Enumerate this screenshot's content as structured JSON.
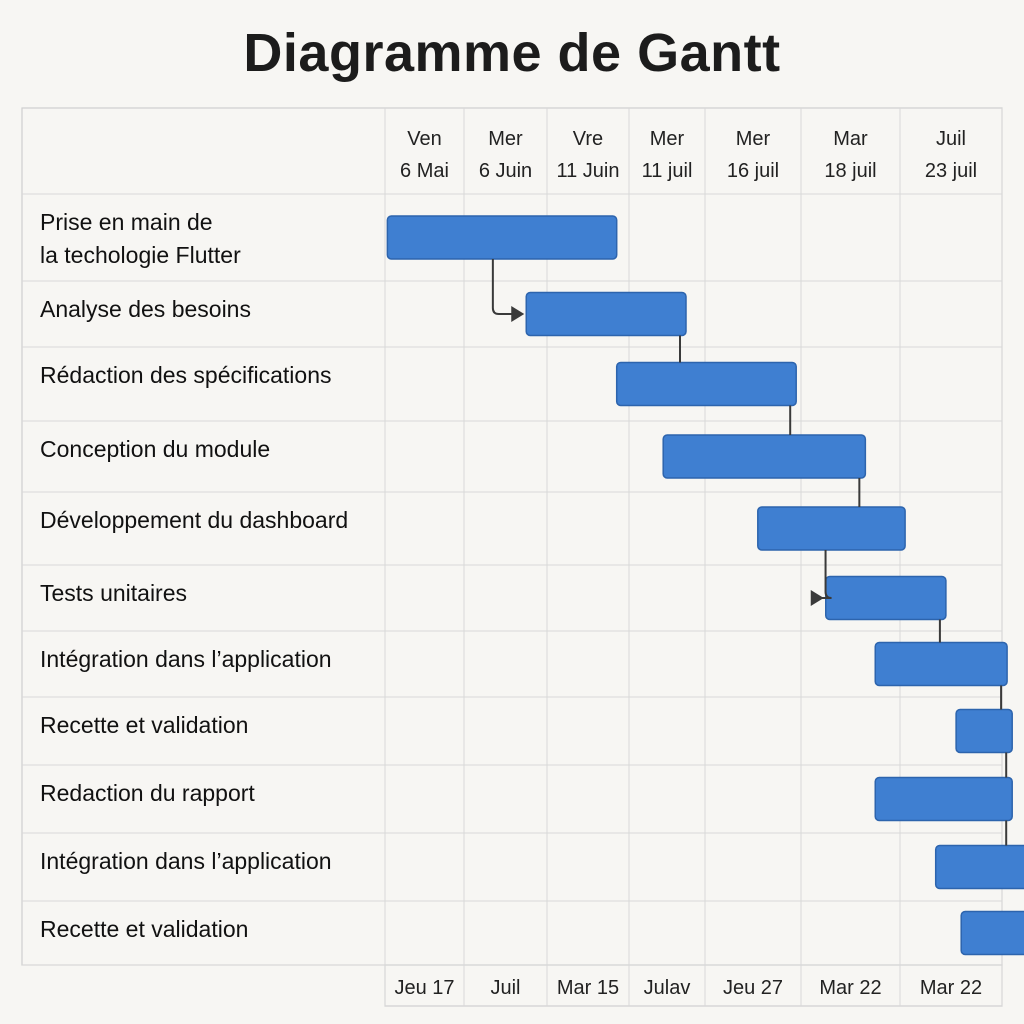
{
  "title": "Diagramme de Gantt",
  "chart_data": {
    "type": "gantt",
    "title": "Diagramme de Gantt",
    "columns_top": [
      {
        "line1": "Ven",
        "line2": "6 Mai"
      },
      {
        "line1": "Mer",
        "line2": "6 Juin"
      },
      {
        "line1": "Vre",
        "line2": "11 Juin"
      },
      {
        "line1": "Mer",
        "line2": "11 juil"
      },
      {
        "line1": "Mer",
        "line2": "16 juil"
      },
      {
        "line1": "Mar",
        "line2": "18 juil"
      },
      {
        "line1": "Juil",
        "line2": "23 juil"
      }
    ],
    "columns_bottom": [
      "Jeu 17",
      "Juil",
      "Mar 15",
      "Julav",
      "Jeu 27",
      "Mar 22",
      "Mar 22"
    ],
    "tasks": [
      {
        "name": "Prise en main de\nla techologie Flutter",
        "start": 0.03,
        "end": 2.85
      },
      {
        "name": "Analyse des besoins",
        "start": 1.75,
        "end": 3.75
      },
      {
        "name": "Rédaction des spécifications",
        "start": 2.85,
        "end": 4.95
      },
      {
        "name": "Conception du module",
        "start": 3.45,
        "end": 5.65
      },
      {
        "name": "Développement du dashboard",
        "start": 4.55,
        "end": 6.05
      },
      {
        "name": "Tests unitaires",
        "start": 5.25,
        "end": 6.45
      },
      {
        "name": "Intégration dans l’application",
        "start": 5.75,
        "end": 7.05
      },
      {
        "name": "Recette et validation",
        "start": 6.55,
        "end": 7.1
      },
      {
        "name": "Redaction du rapport",
        "start": 5.75,
        "end": 7.1
      },
      {
        "name": "Intégration dans l’application",
        "start": 6.35,
        "end": 7.5
      },
      {
        "name": "Recette et validation",
        "start": 6.6,
        "end": 7.5
      }
    ],
    "dependencies": [
      {
        "from": 0,
        "to": 1,
        "arrow": true
      },
      {
        "from": 1,
        "to": 2,
        "arrow": false
      },
      {
        "from": 2,
        "to": 3,
        "arrow": false
      },
      {
        "from": 3,
        "to": 4,
        "arrow": false
      },
      {
        "from": 4,
        "to": 5,
        "arrow": true
      },
      {
        "from": 5,
        "to": 6,
        "arrow": false
      },
      {
        "from": 6,
        "to": 7,
        "arrow": false
      },
      {
        "from": 7,
        "to": 8,
        "arrow": false
      },
      {
        "from": 8,
        "to": 9,
        "arrow": false
      }
    ],
    "bar_color": "#3f7fd1",
    "grid": true
  }
}
